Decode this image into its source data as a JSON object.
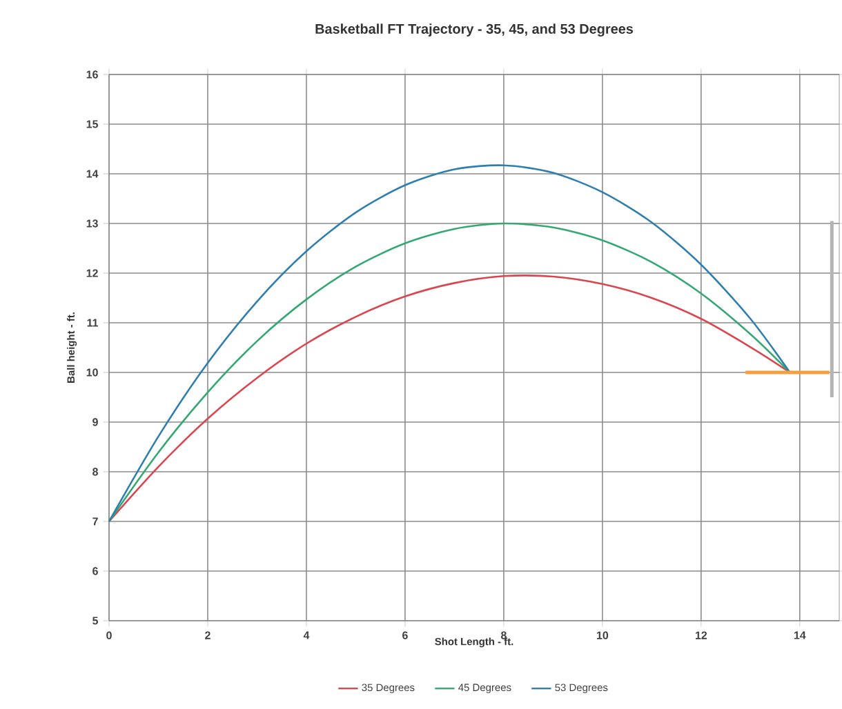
{
  "chart_data": {
    "type": "line",
    "title": "Basketball FT Trajectory - 35, 45, and 53 Degrees",
    "xlabel": "Shot Length - ft.",
    "ylabel": "Ball height - ft.",
    "xlim": [
      0,
      14.8
    ],
    "ylim": [
      5,
      16
    ],
    "xticks": [
      0,
      2,
      4,
      6,
      8,
      10,
      12,
      14
    ],
    "yticks": [
      5,
      6,
      7,
      8,
      9,
      10,
      11,
      12,
      13,
      14,
      15,
      16
    ],
    "grid": true,
    "legend": "bottom",
    "series": [
      {
        "name": "35 Degrees",
        "color": "#d9464f",
        "x": [
          0,
          1,
          2,
          3,
          4,
          5,
          6,
          7,
          8,
          9,
          10,
          11,
          12,
          13,
          13.8
        ],
        "values": [
          7.0,
          8.1,
          9.07,
          9.89,
          10.58,
          11.12,
          11.53,
          11.8,
          11.94,
          11.93,
          11.78,
          11.5,
          11.08,
          10.51,
          10.0
        ]
      },
      {
        "name": "45 Degrees",
        "color": "#33a872",
        "x": [
          0,
          1,
          2,
          3,
          4,
          5,
          6,
          7,
          8,
          9,
          10,
          11,
          12,
          13,
          13.8
        ],
        "values": [
          7.0,
          8.39,
          9.6,
          10.63,
          11.47,
          12.13,
          12.6,
          12.89,
          13.0,
          12.92,
          12.66,
          12.22,
          11.59,
          10.77,
          10.0
        ]
      },
      {
        "name": "53 Degrees",
        "color": "#2e7fae",
        "x": [
          0,
          1,
          2,
          3,
          4,
          5,
          6,
          7,
          8,
          9,
          10,
          11,
          12,
          13,
          13.8
        ],
        "values": [
          7.0,
          8.71,
          10.19,
          11.43,
          12.44,
          13.22,
          13.77,
          14.09,
          14.17,
          14.02,
          13.63,
          13.02,
          12.17,
          11.08,
          10.0
        ]
      },
      {
        "color": "#f4a040",
        "x": [
          12.9,
          14.6
        ],
        "values": [
          10,
          10
        ]
      },
      {
        "color": "#b4b4b4",
        "x": [
          14.65,
          14.65
        ],
        "values": [
          9.5,
          13.05
        ]
      }
    ]
  }
}
